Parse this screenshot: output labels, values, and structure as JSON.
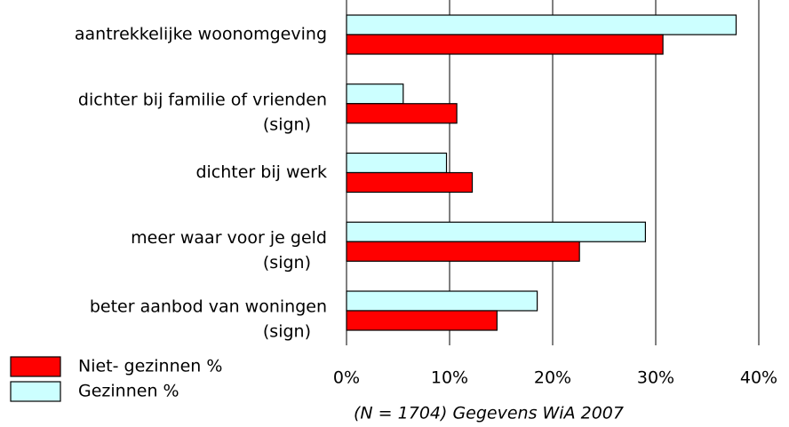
{
  "chart_data": {
    "type": "hbar",
    "categories": [
      "aantrekkelijke woonomgeving",
      "dichter bij familie of vrienden",
      "dichter bij werk",
      "meer waar voor je geld",
      "beter aanbod van woningen"
    ],
    "category_notes": [
      null,
      "(sign)",
      null,
      "(sign)",
      "(sign)"
    ],
    "series": [
      {
        "name": "Gezinnen %",
        "color": "#ccffff",
        "values": [
          37.8,
          5.5,
          9.7,
          29.0,
          18.5
        ]
      },
      {
        "name": "Niet- gezinnen %",
        "color": "#ff0000",
        "values": [
          30.7,
          10.7,
          12.2,
          22.6,
          14.6
        ]
      }
    ],
    "xlim": [
      0,
      40
    ],
    "xticks": [
      {
        "value": 0,
        "label": "0%"
      },
      {
        "value": 10,
        "label": "10%"
      },
      {
        "value": 20,
        "label": "20%"
      },
      {
        "value": 30,
        "label": "30%"
      },
      {
        "value": 40,
        "label": "40%"
      }
    ],
    "grid": true,
    "note": "(N = 1704) Gegevens WiA 2007"
  }
}
